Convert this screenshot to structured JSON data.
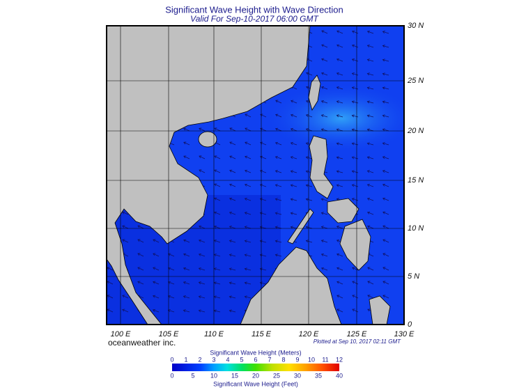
{
  "header": {
    "title": "Significant Wave Height with Wave Direction",
    "subtitle": "Valid For Sep-10-2017 06:00 GMT"
  },
  "map": {
    "lon_labels": [
      "100 E",
      "105 E",
      "110 E",
      "115 E",
      "120 E",
      "125 E",
      "130 E"
    ],
    "lat_labels": [
      "30 N",
      "25 N",
      "20 N",
      "15 N",
      "10 N",
      "5 N",
      "0"
    ]
  },
  "footer": {
    "credit": "oceanweather inc.",
    "plotted": "Plotted at Sep 10, 2017 02:11 GMT"
  },
  "colorbar": {
    "meters_title": "Significant Wave Height (Meters)",
    "meters_ticks": [
      "0",
      "1",
      "2",
      "3",
      "4",
      "5",
      "6",
      "7",
      "8",
      "9",
      "10",
      "11",
      "12"
    ],
    "feet_ticks": [
      "0",
      "5",
      "10",
      "15",
      "20",
      "25",
      "30",
      "35",
      "40"
    ],
    "feet_title": "Significant Wave Height (Feet)"
  }
}
